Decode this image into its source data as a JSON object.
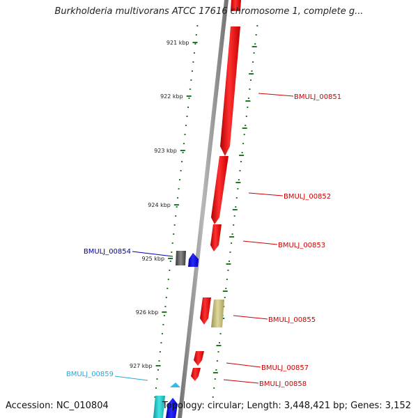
{
  "header": {
    "title": "Burkholderia multivorans ATCC 17616 chromosome 1, complete g..."
  },
  "footer": {
    "accession": "Accession: NC_010804",
    "summary": "Topology: circular; Length: 3,448,421 bp; Genes: 3,152"
  },
  "colors": {
    "backbone": "#8a8a8a",
    "ticks": "#1f7a1f",
    "forward_gene": "#ff0000",
    "reverse_gene": "#0000ff",
    "label_red": "#cc0000",
    "label_blue": "#0000aa",
    "label_cyan": "#22aadd",
    "dark_gray_gene": "#555555",
    "khaki_gene": "#c8c07a",
    "cyan_gene": "#22cccc"
  },
  "ruler": {
    "tick_labels": [
      "921 kbp",
      "922 kbp",
      "923 kbp",
      "924 kbp",
      "925 kbp",
      "926 kbp",
      "927 kbp"
    ]
  },
  "genes": [
    {
      "label": "BMULJ_00851",
      "color_key": "label_red"
    },
    {
      "label": "BMULJ_00852",
      "color_key": "label_red"
    },
    {
      "label": "BMULJ_00853",
      "color_key": "label_red"
    },
    {
      "label": "BMULJ_00854",
      "color_key": "label_blue"
    },
    {
      "label": "BMULJ_00855",
      "color_key": "label_red"
    },
    {
      "label": "BMULJ_00857",
      "color_key": "label_red"
    },
    {
      "label": "BMULJ_00858",
      "color_key": "label_red"
    },
    {
      "label": "BMULJ_00859",
      "color_key": "label_cyan"
    }
  ]
}
